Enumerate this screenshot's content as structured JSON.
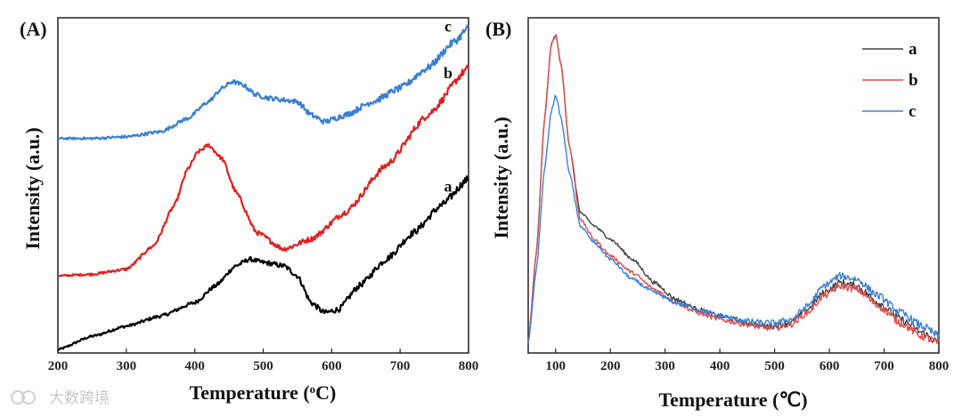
{
  "watermark": "大数跨境",
  "chart_data": [
    {
      "panel": "(A)",
      "type": "line",
      "xlabel_main": "Temperature (",
      "xlabel_sup": "o",
      "xlabel_end": "C)",
      "ylabel": "Intensity (a.u.)",
      "xlim": [
        200,
        800
      ],
      "ylim": [
        0,
        100
      ],
      "xticks": [
        200,
        300,
        400,
        500,
        600,
        700,
        800
      ],
      "series": [
        {
          "name": "a",
          "color": "#000000",
          "x": [
            200,
            250,
            300,
            350,
            400,
            430,
            460,
            480,
            500,
            530,
            550,
            570,
            590,
            610,
            640,
            680,
            720,
            760,
            800
          ],
          "y": [
            1,
            5,
            8,
            11,
            15,
            20,
            26,
            28,
            27,
            26,
            23,
            15,
            12,
            13,
            20,
            28,
            36,
            44,
            52
          ]
        },
        {
          "name": "b",
          "color": "#e02020",
          "x": [
            200,
            250,
            300,
            340,
            370,
            390,
            405,
            420,
            440,
            460,
            490,
            530,
            570,
            620,
            680,
            740,
            800
          ],
          "y": [
            23,
            23.5,
            25,
            32,
            44,
            55,
            60,
            62,
            58,
            48,
            36,
            31,
            34,
            42,
            56,
            71,
            85
          ]
        },
        {
          "name": "c",
          "color": "#3a7fd0",
          "x": [
            200,
            250,
            300,
            350,
            390,
            420,
            440,
            455,
            470,
            490,
            510,
            530,
            550,
            570,
            590,
            620,
            660,
            700,
            740,
            780,
            800
          ],
          "y": [
            64,
            64,
            64.5,
            66,
            70,
            75,
            79,
            81,
            80,
            77,
            76,
            75.5,
            75,
            71,
            69,
            71,
            75,
            79,
            85,
            93,
            97
          ]
        }
      ]
    },
    {
      "panel": "(B)",
      "type": "line",
      "xlabel_main": "Temperature (",
      "xlabel_sup": "",
      "xlabel_end": "℃)",
      "ylabel": "Intensity (a.u.)",
      "xlim": [
        50,
        800
      ],
      "ylim": [
        0,
        100
      ],
      "xticks": [
        100,
        200,
        300,
        400,
        500,
        600,
        700,
        800
      ],
      "legend_position": "top-right",
      "series": [
        {
          "name": "a",
          "color": "#444444",
          "x": [
            50,
            65,
            80,
            92,
            100,
            110,
            125,
            145,
            170,
            200,
            240,
            280,
            320,
            360,
            400,
            450,
            480,
            500,
            530,
            560,
            590,
            620,
            650,
            690,
            730,
            770,
            800
          ],
          "y": [
            3,
            30,
            70,
            92,
            95,
            86,
            62,
            42,
            38,
            34,
            28,
            21,
            16,
            13,
            11,
            9,
            8,
            8,
            9,
            13,
            18,
            21,
            20,
            15,
            10,
            6,
            3
          ]
        },
        {
          "name": "b",
          "color": "#e05050",
          "x": [
            50,
            65,
            80,
            92,
            100,
            110,
            125,
            145,
            170,
            200,
            240,
            280,
            320,
            360,
            400,
            450,
            480,
            500,
            530,
            560,
            590,
            620,
            650,
            690,
            730,
            770,
            800
          ],
          "y": [
            3,
            30,
            70,
            92,
            95,
            86,
            62,
            40,
            34,
            29,
            24,
            19,
            15,
            12,
            10,
            8.5,
            7.5,
            7.5,
            8.5,
            12,
            17,
            20,
            19,
            14,
            9,
            5,
            3
          ]
        },
        {
          "name": "c",
          "color": "#3a80d8",
          "x": [
            50,
            65,
            80,
            92,
            100,
            110,
            125,
            145,
            170,
            200,
            240,
            280,
            320,
            360,
            400,
            450,
            480,
            500,
            530,
            560,
            590,
            620,
            650,
            690,
            730,
            770,
            800
          ],
          "y": [
            3,
            25,
            55,
            72,
            77,
            70,
            54,
            38,
            33,
            28,
            22,
            18,
            15,
            13,
            11,
            9.5,
            9,
            9,
            10,
            14,
            20,
            23,
            22,
            17,
            12,
            8,
            5
          ]
        }
      ]
    }
  ]
}
